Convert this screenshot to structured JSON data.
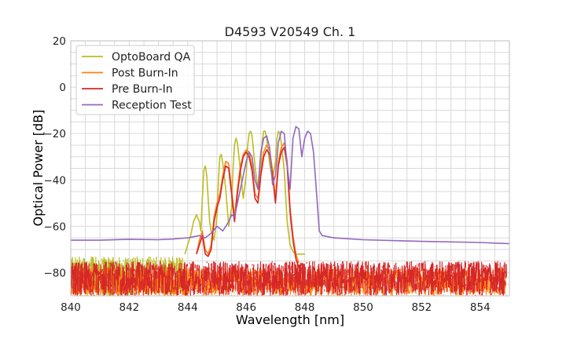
{
  "chart_data": {
    "type": "line",
    "title": "D4593 V20549 Ch. 1",
    "xlabel": "Wavelength [nm]",
    "ylabel": "Optical Power [dB]",
    "xlim": [
      840,
      855
    ],
    "ylim": [
      -90,
      20
    ],
    "xticks": [
      "840",
      "842",
      "844",
      "846",
      "848",
      "850",
      "852",
      "854"
    ],
    "yticks": [
      "20",
      "0",
      "−20",
      "−40",
      "−60",
      "−80"
    ],
    "grid": true,
    "legend_position": "top-left",
    "series": [
      {
        "name": "OptoBoard QA",
        "color": "#bcbd22",
        "floor_noise": {
          "start": 840.0,
          "end": 843.9,
          "min": -90,
          "max": -73,
          "seed": 7
        },
        "x": [
          843.9,
          844.0,
          844.1,
          844.2,
          844.3,
          844.4,
          844.45,
          844.5,
          844.55,
          844.6,
          844.65,
          844.7,
          844.75,
          844.8,
          844.9,
          845.0,
          845.05,
          845.1,
          845.15,
          845.2,
          845.3,
          845.4,
          845.5,
          845.55,
          845.6,
          845.65,
          845.7,
          845.8,
          845.9,
          846.0,
          846.05,
          846.1,
          846.15,
          846.2,
          846.3,
          846.4,
          846.5,
          846.55,
          846.6,
          846.65,
          846.7,
          846.8,
          846.9,
          847.0,
          847.05,
          847.1,
          847.15,
          847.2,
          847.3,
          847.4,
          847.5,
          847.6,
          847.7,
          847.8,
          847.9,
          848.0
        ],
        "y": [
          -72,
          -68,
          -64,
          -58,
          -55,
          -58,
          -62,
          -48,
          -36,
          -34,
          -38,
          -48,
          -58,
          -62,
          -66,
          -56,
          -40,
          -30,
          -29,
          -33,
          -44,
          -60,
          -52,
          -35,
          -25,
          -22,
          -24,
          -36,
          -48,
          -38,
          -25,
          -20,
          -19,
          -21,
          -34,
          -44,
          -34,
          -23,
          -19,
          -19,
          -22,
          -33,
          -40,
          -32,
          -22,
          -19,
          -20,
          -24,
          -36,
          -58,
          -68,
          -71,
          -72,
          -72,
          -72,
          -72
        ]
      },
      {
        "name": "Post Burn-In",
        "color": "#ff7f0e",
        "floor_noise": {
          "start": 840.0,
          "end": 854.9,
          "min": -90,
          "max": -78,
          "seed": 13
        },
        "x": [
          844.3,
          844.4,
          844.5,
          844.6,
          844.7,
          844.8,
          844.9,
          845.0,
          845.1,
          845.2,
          845.3,
          845.4,
          845.5,
          845.6,
          845.7,
          845.8,
          845.9,
          846.0,
          846.1,
          846.2,
          846.3,
          846.4,
          846.5,
          846.6,
          846.7,
          846.8,
          846.9,
          847.0,
          847.1,
          847.2,
          847.3,
          847.4,
          847.5,
          847.6,
          847.7,
          847.8
        ],
        "y": [
          -72,
          -66,
          -62,
          -70,
          -72,
          -68,
          -56,
          -50,
          -46,
          -38,
          -32,
          -33,
          -44,
          -56,
          -44,
          -34,
          -29,
          -27,
          -28,
          -34,
          -46,
          -48,
          -36,
          -28,
          -25,
          -27,
          -36,
          -48,
          -32,
          -26,
          -24,
          -32,
          -52,
          -64,
          -72,
          -76
        ]
      },
      {
        "name": "Pre Burn-In",
        "color": "#d62728",
        "floor_noise": {
          "start": 840.0,
          "end": 854.9,
          "min": -90,
          "max": -75,
          "seed": 29
        },
        "x": [
          844.3,
          844.4,
          844.5,
          844.6,
          844.7,
          844.8,
          844.9,
          845.0,
          845.1,
          845.2,
          845.3,
          845.4,
          845.5,
          845.6,
          845.7,
          845.8,
          845.9,
          846.0,
          846.1,
          846.2,
          846.3,
          846.4,
          846.5,
          846.6,
          846.7,
          846.8,
          846.9,
          847.0,
          847.1,
          847.2,
          847.3,
          847.4,
          847.5,
          847.6,
          847.7,
          847.8
        ],
        "y": [
          -72,
          -68,
          -64,
          -72,
          -73,
          -70,
          -58,
          -52,
          -48,
          -40,
          -34,
          -35,
          -46,
          -58,
          -46,
          -36,
          -30,
          -28,
          -30,
          -36,
          -48,
          -50,
          -38,
          -30,
          -27,
          -29,
          -38,
          -50,
          -34,
          -28,
          -26,
          -34,
          -54,
          -66,
          -74,
          -78
        ]
      },
      {
        "name": "Reception Test",
        "color": "#9467bd",
        "x": [
          840,
          841,
          842,
          843,
          843.5,
          844,
          844.2,
          844.4,
          844.6,
          844.8,
          845,
          845.2,
          845.4,
          845.5,
          845.6,
          845.7,
          845.8,
          845.9,
          846,
          846.1,
          846.2,
          846.3,
          846.4,
          846.5,
          846.6,
          846.7,
          846.8,
          846.9,
          847,
          847.1,
          847.2,
          847.3,
          847.4,
          847.5,
          847.6,
          847.7,
          847.8,
          847.9,
          848,
          848.1,
          848.2,
          848.3,
          848.4,
          848.5,
          848.6,
          848.8,
          849,
          850,
          852,
          854,
          855
        ],
        "y": [
          -66,
          -66,
          -65.6,
          -65.8,
          -65.5,
          -65,
          -64.5,
          -64,
          -65,
          -63,
          -60,
          -62,
          -58,
          -55,
          -56,
          -50,
          -44,
          -38,
          -32,
          -28,
          -30,
          -40,
          -44,
          -28,
          -22,
          -21,
          -26,
          -42,
          -38,
          -24,
          -19,
          -20,
          -34,
          -44,
          -22,
          -17,
          -18,
          -30,
          -22,
          -19,
          -20,
          -28,
          -45,
          -62,
          -64,
          -64.5,
          -65,
          -65.8,
          -66.5,
          -67,
          -67.5
        ]
      }
    ]
  }
}
